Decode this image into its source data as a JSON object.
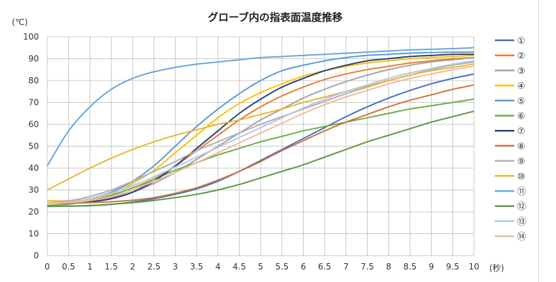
{
  "chart_data": {
    "type": "line",
    "title": "グローブ内の指表面温度推移",
    "y_unit_label": "(℃)",
    "x_unit_label": "(秒)",
    "ylim": [
      0,
      100
    ],
    "xlim": [
      0,
      10
    ],
    "y_ticks": [
      "0",
      "10",
      "20",
      "30",
      "40",
      "50",
      "60",
      "70",
      "80",
      "90",
      "100"
    ],
    "x_ticks": [
      "0",
      "0.5",
      "1",
      "1.5",
      "2",
      "2.5",
      "3",
      "3.5",
      "4",
      "4.5",
      "5",
      "5.5",
      "6",
      "6.5",
      "7",
      "7.5",
      "8",
      "8.5",
      "9",
      "9.5",
      "10"
    ],
    "grid": true,
    "legend_position": "right",
    "x": [
      0,
      0.5,
      1,
      1.5,
      2,
      2.5,
      3,
      3.5,
      4,
      4.5,
      5,
      5.5,
      6,
      6.5,
      7,
      7.5,
      8,
      8.5,
      9,
      9.5,
      10
    ],
    "series": [
      {
        "name": "①",
        "color": "#4472c4",
        "values": [
          22.5,
          22.6,
          22.8,
          23.4,
          24.5,
          26,
          28,
          30.5,
          34,
          38.5,
          43.5,
          48.5,
          53.5,
          58.5,
          63.5,
          68,
          72,
          75.5,
          78.5,
          81,
          83
        ]
      },
      {
        "name": "②",
        "color": "#ed7d31",
        "values": [
          25,
          25,
          25.5,
          27,
          30,
          35,
          41,
          48,
          55,
          62,
          68,
          73,
          77,
          80.5,
          83,
          85,
          86.5,
          88,
          89,
          90,
          90.5
        ]
      },
      {
        "name": "③",
        "color": "#a5a5a5",
        "values": [
          24,
          24.2,
          25,
          26.5,
          29,
          33,
          38,
          44,
          50,
          56,
          62,
          67,
          72,
          76,
          79.5,
          82.5,
          85,
          87,
          88.5,
          89.5,
          90.5
        ]
      },
      {
        "name": "④",
        "color": "#ffc000",
        "values": [
          25,
          25,
          25.5,
          28,
          33,
          39,
          47,
          55,
          63,
          69.5,
          74.5,
          78.5,
          82,
          84.5,
          86.5,
          88,
          89,
          90,
          90.5,
          91,
          91.5
        ]
      },
      {
        "name": "⑤",
        "color": "#5b9bd5",
        "values": [
          24,
          24.5,
          26,
          29,
          34,
          41,
          50,
          59,
          67,
          74,
          80,
          84.5,
          87,
          89,
          90.5,
          91.5,
          92,
          92.5,
          92.8,
          93,
          93
        ]
      },
      {
        "name": "⑥",
        "color": "#70ad47",
        "values": [
          23,
          23.5,
          25,
          27.5,
          31,
          35,
          39,
          42.5,
          46,
          49,
          52,
          54.5,
          57,
          59,
          61,
          63,
          65,
          67,
          68.5,
          70,
          71.5
        ]
      },
      {
        "name": "⑦",
        "color": "#264478",
        "values": [
          24,
          24.1,
          24.6,
          26,
          29,
          34,
          41,
          49,
          57,
          65,
          71.5,
          77,
          81,
          84.5,
          87,
          89,
          90,
          91,
          91.5,
          92,
          92
        ]
      },
      {
        "name": "⑧",
        "color": "#d0743c",
        "values": [
          24,
          24,
          24.2,
          24.6,
          25.3,
          26.5,
          28.5,
          31,
          34.5,
          38.5,
          43,
          48,
          52.5,
          57,
          61,
          64.5,
          68,
          71,
          73.5,
          76,
          78
        ]
      },
      {
        "name": "⑨",
        "color": "#b0b0b0",
        "values": [
          24,
          25,
          27,
          30,
          34,
          38.5,
          43,
          48,
          52,
          56,
          60,
          63.5,
          67,
          70.5,
          74,
          77,
          80,
          82.5,
          85,
          87,
          88.5
        ]
      },
      {
        "name": "⑩",
        "color": "#e9b82b",
        "values": [
          30,
          35,
          40,
          44.5,
          48.5,
          52,
          55,
          57.5,
          60,
          62,
          64.5,
          67,
          70,
          72.5,
          75,
          77.5,
          80,
          82.5,
          84.5,
          86,
          87.5
        ]
      },
      {
        "name": "⑪",
        "color": "#6aa6dc",
        "values": [
          41,
          57,
          68,
          76,
          81,
          84,
          86,
          87.5,
          88.5,
          89.5,
          90.5,
          91,
          91.5,
          92,
          92.5,
          93,
          93.5,
          94,
          94.3,
          94.6,
          95
        ]
      },
      {
        "name": "⑫",
        "color": "#5e9a41",
        "values": [
          22.5,
          22.6,
          22.9,
          23.5,
          24.2,
          25.2,
          26.5,
          28,
          30,
          32.5,
          35.5,
          38.5,
          41.5,
          45,
          48.5,
          52,
          55,
          58,
          61,
          63.5,
          66
        ]
      },
      {
        "name": "⑬",
        "color": "#b4c7e7",
        "values": [
          24,
          24.5,
          26,
          28.5,
          32,
          36,
          40.5,
          45,
          49.5,
          54,
          58.5,
          63,
          67.5,
          71.5,
          75,
          78,
          81,
          83.5,
          85.5,
          87.5,
          89
        ]
      },
      {
        "name": "⑭",
        "color": "#f4b9a0",
        "values": [
          24,
          24.3,
          25.2,
          27,
          30,
          34,
          38,
          42.5,
          47,
          51.5,
          56,
          60.5,
          65,
          69,
          72.5,
          75.5,
          78.5,
          81,
          83,
          85,
          86.5
        ]
      }
    ]
  }
}
